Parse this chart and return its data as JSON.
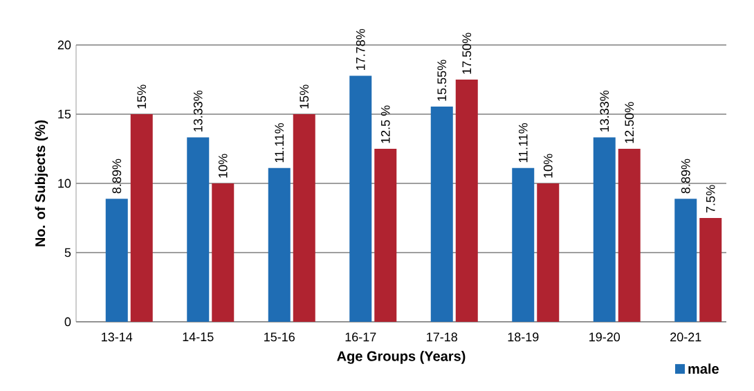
{
  "chart_data": {
    "type": "bar",
    "xlabel": "Age Groups (Years)",
    "ylabel": "No. of Subjects (%)",
    "categories": [
      "13-14",
      "14-15",
      "15-16",
      "16-17",
      "17-18",
      "18-19",
      "19-20",
      "20-21"
    ],
    "series": [
      {
        "name": "male",
        "color": "#1f6db4",
        "values": [
          8.89,
          13.33,
          11.11,
          17.78,
          15.55,
          11.11,
          13.33,
          8.89
        ],
        "value_labels": [
          "8.89%",
          "13.33%",
          "11.11%",
          "17.78%",
          "15.55%",
          "11.11%",
          "13.33%",
          "8.89%"
        ]
      },
      {
        "color": "#b02330",
        "values": [
          15,
          10,
          15,
          12.5,
          17.5,
          10,
          12.5,
          7.5
        ],
        "value_labels": [
          "15%",
          "10%",
          "15%",
          "12.5 %",
          "17.50%",
          "10%",
          "12.50%",
          "7.5%"
        ]
      }
    ],
    "ylim": [
      0,
      20
    ],
    "yticks": [
      0,
      5,
      10,
      15,
      20
    ],
    "grid": "y",
    "legend": "bottom right"
  }
}
